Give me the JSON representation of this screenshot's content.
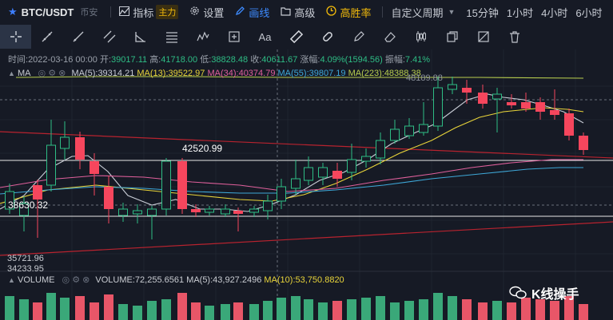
{
  "header": {
    "symbol": "BTC/USDT",
    "exchange": "币安",
    "indicator_label": "指标",
    "indicator_badge": "主力",
    "settings_label": "设置",
    "draw_label": "画线",
    "advanced_label": "高级",
    "win_rate_label": "高胜率",
    "custom_period_label": "自定义周期",
    "periods": [
      "15分钟",
      "1小时",
      "4小时",
      "6小时"
    ]
  },
  "ohlc": {
    "time_label": "时间:",
    "time": "2022-03-16 00:00",
    "open_label": "开:",
    "open": "39017.11",
    "high_label": "高:",
    "high": "41718.00",
    "low_label": "低:",
    "low": "38828.48",
    "close_label": "收:",
    "close": "40611.67",
    "change_label": "涨幅:",
    "change": "4.09%(1594.56)",
    "amplitude_label": "振幅:",
    "amplitude": "7.41%"
  },
  "ma_legend": {
    "name": "MA",
    "ma5": "MA(5):39314.21",
    "ma13": "MA(13):39522.97",
    "ma34": "MA(34):40374.79",
    "ma55": "MA(55):39807.19",
    "ma223": "MA(223):48388.38"
  },
  "volume_legend": {
    "name": "VOLUME",
    "volume": "VOLUME:72,255.6561",
    "ma5": "MA(5):43,927.2496",
    "ma10": "MA(10):53,750.8820"
  },
  "price_labels": {
    "level_high": "42520.99",
    "level_low": "38630.32",
    "low1": "35721.96",
    "low2": "34233.95",
    "top": "48189.88"
  },
  "watermark": "K线操手",
  "colors": {
    "background": "#161a25",
    "up": "#2ebd85",
    "down": "#f6465d",
    "ma5": "#c9cdd6",
    "ma13": "#e8d43a",
    "ma34": "#e0609c",
    "ma55": "#3ea8d8",
    "ma223": "#b9cf4f",
    "accent": "#3d7eff",
    "gold": "#f0b90b"
  },
  "icons": {
    "star": "star-icon",
    "indicator": "indicator-icon",
    "settings": "gear-icon",
    "draw": "pencil-icon",
    "advanced": "folder-icon",
    "win_rate": "target-icon",
    "dropdown": "chevron-down-icon"
  }
}
